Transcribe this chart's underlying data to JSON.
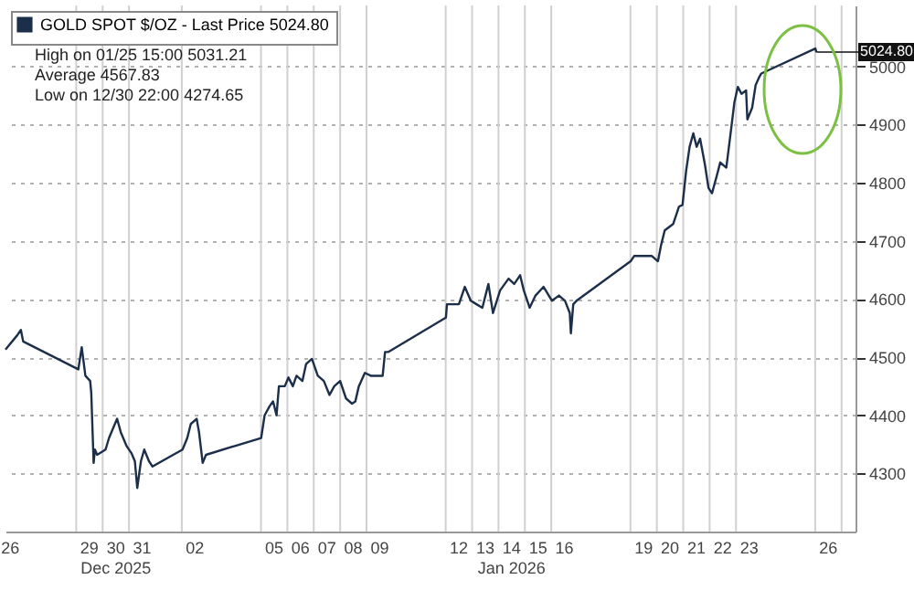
{
  "chart_data": {
    "type": "line",
    "x": [
      "2025-12-26T07:40",
      "2025-12-26T18:30",
      "2025-12-26T21:40",
      "2025-12-26T23:45",
      "2025-12-29T01:55",
      "2025-12-29T05:00",
      "2025-12-29T08:20",
      "2025-12-29T12:40",
      "2025-12-29T13:40",
      "2025-12-29T15:50",
      "2025-12-29T17:00",
      "2025-12-29T19:00",
      "2025-12-30T02:40",
      "2025-12-30T05:50",
      "2025-12-30T13:10",
      "2025-12-30T16:30",
      "2025-12-30T21:50",
      "2025-12-31T02:10",
      "2025-12-31T05:20",
      "2025-12-31T07:30",
      "2025-12-31T10:50",
      "2025-12-31T13:50",
      "2025-12-31T18:10",
      "2025-12-31T21:20",
      "2026-01-02T00:40",
      "2026-01-02T05:00",
      "2026-01-02T08:10",
      "2026-01-02T13:30",
      "2026-01-02T15:40",
      "2026-01-02T19:00",
      "2026-01-02T22:00",
      "2026-01-05T00:10",
      "2026-01-05T03:20",
      "2026-01-05T07:40",
      "2026-01-05T11:00",
      "2026-01-05T14:10",
      "2026-01-05T16:20",
      "2026-01-05T21:40",
      "2026-01-06T01:00",
      "2026-01-06T05:00",
      "2026-01-06T08:20",
      "2026-01-06T13:40",
      "2026-01-06T17:00",
      "2026-01-06T22:20",
      "2026-01-07T03:40",
      "2026-01-07T09:10",
      "2026-01-07T14:20",
      "2026-01-07T18:40",
      "2026-01-08T00:00",
      "2026-01-08T05:20",
      "2026-01-08T10:50",
      "2026-01-08T13:50",
      "2026-01-08T17:00",
      "2026-01-08T22:30",
      "2026-01-09T03:50",
      "2026-01-09T09:10",
      "2026-01-09T14:40",
      "2026-01-09T16:50",
      "2026-01-09T20:00",
      "2026-01-12T00:10",
      "2026-01-12T01:10",
      "2026-01-12T06:40",
      "2026-01-12T12:00",
      "2026-01-12T17:20",
      "2026-01-12T22:50",
      "2026-01-13T04:00",
      "2026-01-13T09:20",
      "2026-01-13T14:50",
      "2026-01-13T19:00",
      "2026-01-14T01:30",
      "2026-01-14T09:10",
      "2026-01-14T14:20",
      "2026-01-14T19:40",
      "2026-01-14T23:00",
      "2026-01-15T04:20",
      "2026-01-15T09:40",
      "2026-01-15T17:00",
      "2026-01-16T00:40",
      "2026-01-16T07:00",
      "2026-01-16T12:30",
      "2026-01-16T16:50",
      "2026-01-16T17:50",
      "2026-01-16T20:00",
      "2026-01-16T23:00",
      "2026-01-19T00:10",
      "2026-01-19T03:20",
      "2026-01-19T12:00",
      "2026-01-19T19:30",
      "2026-01-20T01:00",
      "2026-01-20T04:00",
      "2026-01-20T07:10",
      "2026-01-20T14:50",
      "2026-01-20T20:10",
      "2026-01-20T23:20",
      "2026-01-21T02:40",
      "2026-01-21T05:50",
      "2026-01-21T09:10",
      "2026-01-21T12:10",
      "2026-01-21T15:20",
      "2026-01-21T19:40",
      "2026-01-21T23:00",
      "2026-01-22T02:10",
      "2026-01-22T06:30",
      "2026-01-22T09:40",
      "2026-01-22T15:10",
      "2026-01-22T18:10",
      "2026-01-22T22:30",
      "2026-01-23T01:40",
      "2026-01-23T05:00",
      "2026-01-23T09:10",
      "2026-01-23T10:20",
      "2026-01-23T14:40",
      "2026-01-23T17:50",
      "2026-01-23T21:10",
      "2026-01-23T23:00",
      "2026-01-26T00:10",
      "2026-01-26T01:10"
    ],
    "series": [
      {
        "name": "GOLD SPOT $/OZ - Last Price 5024.80",
        "color": "#1c2f4a",
        "values": [
          4513,
          4538,
          4547,
          4527,
          4479,
          4517,
          4468,
          4459,
          4439,
          4318,
          4341,
          4332,
          4341,
          4361,
          4394,
          4371,
          4347,
          4335,
          4321,
          4275,
          4321,
          4341,
          4321,
          4312,
          4341,
          4361,
          4385,
          4394,
          4371,
          4318,
          4332,
          4361,
          4400,
          4415,
          4424,
          4400,
          4450,
          4450,
          4465,
          4450,
          4468,
          4459,
          4488,
          4497,
          4468,
          4459,
          4435,
          4450,
          4459,
          4429,
          4420,
          4424,
          4450,
          4473,
          4468,
          4468,
          4468,
          4509,
          4509,
          4568,
          4591,
          4591,
          4591,
          4621,
          4597,
          4591,
          4585,
          4626,
          4576,
          4615,
          4635,
          4626,
          4641,
          4615,
          4585,
          4606,
          4621,
          4597,
          4606,
          4597,
          4576,
          4541,
          4591,
          4597,
          4665,
          4674,
          4674,
          4674,
          4665,
          4694,
          4718,
          4729,
          4759,
          4762,
          4821,
          4862,
          4885,
          4862,
          4876,
          4832,
          4791,
          4782,
          4812,
          4835,
          4826,
          4871,
          4938,
          4965,
          4953,
          4959,
          4909,
          4929,
          4968,
          4982,
          4988,
          5031,
          5024.8
        ]
      }
    ],
    "xlim": [
      "2025-12-26T07:40",
      "2026-01-27T12:40"
    ],
    "xticks": [
      {
        "value": "2025-12-26T12:00",
        "label": "26"
      },
      {
        "value": "2025-12-29T12:00",
        "label": "29"
      },
      {
        "value": "2025-12-30T12:00",
        "label": "30\nDec 2025"
      },
      {
        "value": "2025-12-31T12:00",
        "label": "31"
      },
      {
        "value": "2026-01-02T12:00",
        "label": "02"
      },
      {
        "value": "2026-01-05T12:00",
        "label": "05"
      },
      {
        "value": "2026-01-06T12:00",
        "label": "06"
      },
      {
        "value": "2026-01-07T12:00",
        "label": "07"
      },
      {
        "value": "2026-01-08T12:00",
        "label": "08"
      },
      {
        "value": "2026-01-09T12:00",
        "label": "09"
      },
      {
        "value": "2026-01-12T12:00",
        "label": "12"
      },
      {
        "value": "2026-01-13T12:00",
        "label": "13"
      },
      {
        "value": "2026-01-14T12:00",
        "label": "14\nJan 2026"
      },
      {
        "value": "2026-01-15T12:00",
        "label": "15"
      },
      {
        "value": "2026-01-16T12:00",
        "label": "16"
      },
      {
        "value": "2026-01-19T12:00",
        "label": "19"
      },
      {
        "value": "2026-01-20T12:00",
        "label": "20"
      },
      {
        "value": "2026-01-21T12:00",
        "label": "21"
      },
      {
        "value": "2026-01-22T12:00",
        "label": "22"
      },
      {
        "value": "2026-01-23T12:00",
        "label": "23"
      },
      {
        "value": "2026-01-26T12:00",
        "label": "26"
      },
      {
        "value": "2025-12-29",
        "label": null
      },
      {
        "value": "2025-12-30",
        "label": null
      },
      {
        "value": "2025-12-31",
        "label": null
      },
      {
        "value": "2026-01-02",
        "label": null
      },
      {
        "value": "2026-01-05",
        "label": null
      },
      {
        "value": "2026-01-06",
        "label": null
      },
      {
        "value": "2026-01-07",
        "label": null
      },
      {
        "value": "2026-01-08",
        "label": null
      },
      {
        "value": "2026-01-09",
        "label": null
      },
      {
        "value": "2026-01-12",
        "label": null
      },
      {
        "value": "2026-01-13",
        "label": null
      },
      {
        "value": "2026-01-14",
        "label": null
      },
      {
        "value": "2026-01-15",
        "label": null
      },
      {
        "value": "2026-01-16",
        "label": null
      },
      {
        "value": "2026-01-19",
        "label": null
      },
      {
        "value": "2026-01-20",
        "label": null
      },
      {
        "value": "2026-01-21",
        "label": null
      },
      {
        "value": "2026-01-22",
        "label": null
      },
      {
        "value": "2026-01-23",
        "label": null
      },
      {
        "value": "2026-01-26",
        "label": null
      },
      {
        "value": "2026-01-27",
        "label": null
      }
    ],
    "ylim": [
      4200,
      5105
    ],
    "yticks": [
      {
        "value": 4300,
        "label": "4300"
      },
      {
        "value": 4400,
        "label": "4400"
      },
      {
        "value": 4500,
        "label": "4500"
      },
      {
        "value": 4600,
        "label": "4600"
      },
      {
        "value": 4700,
        "label": "4700"
      },
      {
        "value": 4800,
        "label": "4800"
      },
      {
        "value": 4900,
        "label": "4900"
      },
      {
        "value": 5000,
        "label": "5000"
      }
    ],
    "grid": true,
    "legend": "top left",
    "annotations": [
      "High on 01/25 15:00 5031.21",
      "Average 4567.83",
      "Low on 12/30 22:00 4274.65",
      {
        "text": "5024.80",
        "x": "2026-01-26T01:10",
        "y": 5024.8
      }
    ]
  }
}
